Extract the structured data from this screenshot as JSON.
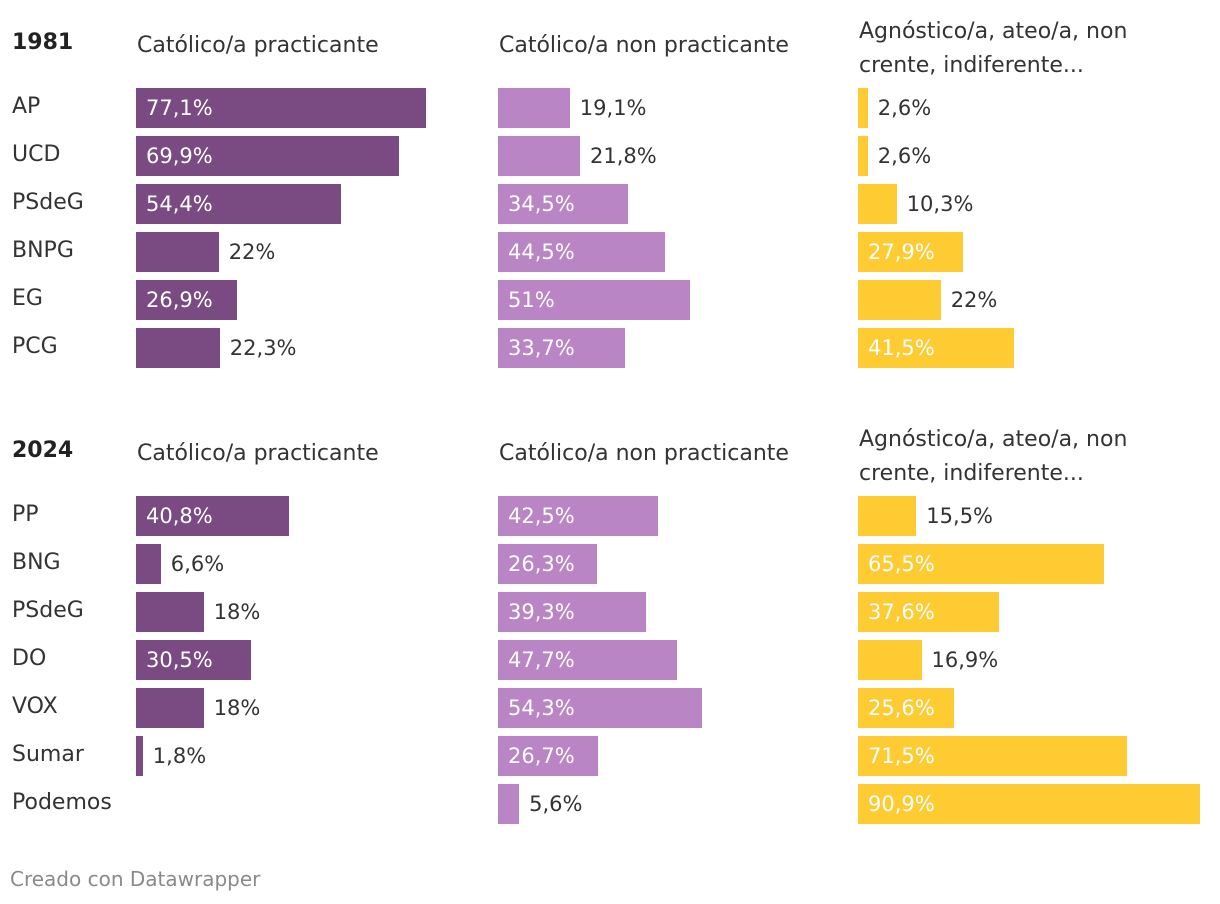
{
  "chart_data": {
    "type": "bar",
    "unit": "%",
    "colors": {
      "practicante": "#7a4b82",
      "non_practicante": "#b985c5",
      "agnostico": "#ffcb33"
    },
    "columns": [
      {
        "key": "practicante",
        "label": "Católico/a practicante"
      },
      {
        "key": "non_practicante",
        "label": "Católico/a non practicante"
      },
      {
        "key": "agnostico",
        "label": "Agnóstico/a, ateo/a, non crente, indiferente..."
      }
    ],
    "groups": [
      {
        "year": "1981",
        "rows": [
          {
            "party": "AP",
            "values": [
              77.1,
              19.1,
              2.6
            ],
            "labels": [
              "77,1%",
              "19,1%",
              "2,6%"
            ]
          },
          {
            "party": "UCD",
            "values": [
              69.9,
              21.8,
              2.6
            ],
            "labels": [
              "69,9%",
              "21,8%",
              "2,6%"
            ]
          },
          {
            "party": "PSdeG",
            "values": [
              54.4,
              34.5,
              10.3
            ],
            "labels": [
              "54,4%",
              "34,5%",
              "10,3%"
            ]
          },
          {
            "party": "BNPG",
            "values": [
              22,
              44.5,
              27.9
            ],
            "labels": [
              "22%",
              "44,5%",
              "27,9%"
            ]
          },
          {
            "party": "EG",
            "values": [
              26.9,
              51,
              22
            ],
            "labels": [
              "26,9%",
              "51%",
              "22%"
            ]
          },
          {
            "party": "PCG",
            "values": [
              22.3,
              33.7,
              41.5
            ],
            "labels": [
              "22,3%",
              "33,7%",
              "41,5%"
            ]
          }
        ]
      },
      {
        "year": "2024",
        "rows": [
          {
            "party": "PP",
            "values": [
              40.8,
              42.5,
              15.5
            ],
            "labels": [
              "40,8%",
              "42,5%",
              "15,5%"
            ]
          },
          {
            "party": "BNG",
            "values": [
              6.6,
              26.3,
              65.5
            ],
            "labels": [
              "6,6%",
              "26,3%",
              "65,5%"
            ]
          },
          {
            "party": "PSdeG",
            "values": [
              18,
              39.3,
              37.6
            ],
            "labels": [
              "18%",
              "39,3%",
              "37,6%"
            ]
          },
          {
            "party": "DO",
            "values": [
              30.5,
              47.7,
              16.9
            ],
            "labels": [
              "30,5%",
              "47,7%",
              "16,9%"
            ]
          },
          {
            "party": "VOX",
            "values": [
              18,
              54.3,
              25.6
            ],
            "labels": [
              "18%",
              "54,3%",
              "25,6%"
            ]
          },
          {
            "party": "Sumar",
            "values": [
              1.8,
              26.7,
              71.5
            ],
            "labels": [
              "1,8%",
              "26,7%",
              "71,5%"
            ]
          },
          {
            "party": "Podemos",
            "values": [
              null,
              5.6,
              90.9
            ],
            "labels": [
              "",
              "5,6%",
              "90,9%"
            ]
          }
        ]
      }
    ]
  },
  "footer": {
    "credit": "Creado con Datawrapper"
  }
}
